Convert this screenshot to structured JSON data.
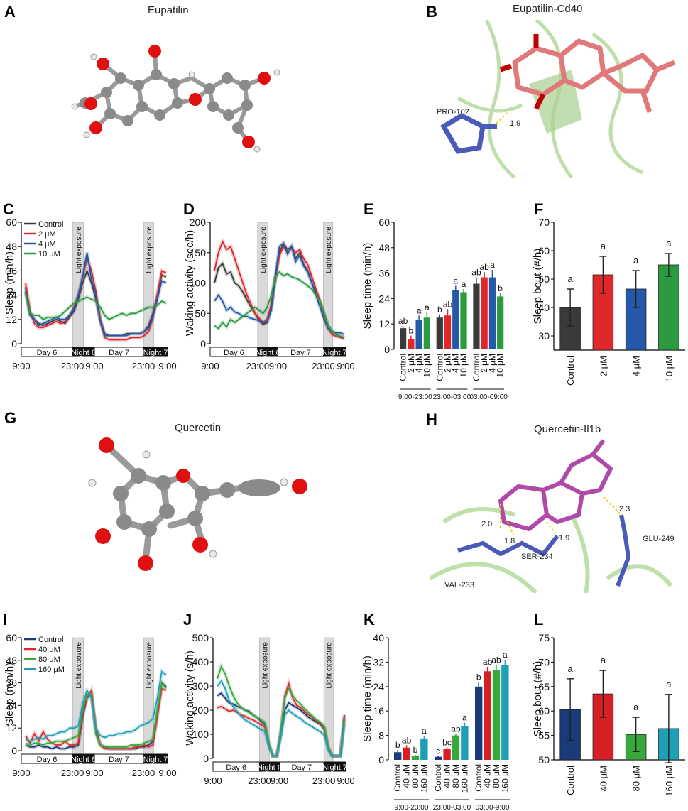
{
  "panels": {
    "A": {
      "letter": "A",
      "title": "Eupatilin"
    },
    "B": {
      "letter": "B",
      "title": "Eupatilin-Cd40",
      "labels": [
        "PRO-102",
        "1.9"
      ]
    },
    "G": {
      "letter": "G",
      "title": "Quercetin"
    },
    "H": {
      "letter": "H",
      "title": "Quercetin-Il1b",
      "labels": [
        "2.0",
        "1.8",
        "1.9",
        "2.3",
        "GLU-249",
        "SER-234",
        "VAL-233"
      ]
    }
  },
  "chart_data": [
    {
      "id": "C",
      "letter": "C",
      "type": "line",
      "ylabel": "Sleep (min/h)",
      "ylim": [
        0,
        60
      ],
      "yticks": [
        0,
        12,
        24,
        36,
        48,
        60
      ],
      "xticks": [
        "9:00",
        "23:00",
        "9:00",
        "23:00",
        "9:00"
      ],
      "day_bar": [
        "Day 6",
        "Night 6",
        "Day 7",
        "Night 7"
      ],
      "shade_label": "Light exposure",
      "series": [
        {
          "name": "Control",
          "color": "#3a3a3a",
          "values": [
            28,
            15,
            12,
            10,
            9,
            10,
            11,
            12,
            11,
            10,
            13,
            16,
            22,
            30,
            36,
            30,
            22,
            12,
            5,
            4,
            4,
            4,
            4,
            5,
            5,
            5,
            5,
            6,
            9,
            15,
            24,
            34,
            33
          ]
        },
        {
          "name": "2 μM",
          "color": "#e0282a",
          "values": [
            30,
            16,
            10,
            8,
            8,
            9,
            10,
            11,
            10,
            11,
            14,
            18,
            24,
            33,
            42,
            36,
            26,
            12,
            3,
            2,
            2,
            2,
            2,
            2,
            3,
            3,
            3,
            4,
            6,
            13,
            24,
            36,
            35
          ]
        },
        {
          "name": "4 μM",
          "color": "#2558a8",
          "values": [
            26,
            14,
            12,
            9,
            10,
            11,
            12,
            13,
            12,
            12,
            14,
            17,
            24,
            33,
            45,
            32,
            24,
            11,
            4,
            4,
            4,
            4,
            4,
            4,
            5,
            5,
            5,
            6,
            8,
            13,
            22,
            31,
            30
          ]
        },
        {
          "name": "10 μM",
          "color": "#2c9b3f",
          "values": [
            25,
            15,
            14,
            14,
            12,
            13,
            13,
            13,
            14,
            16,
            18,
            20,
            21,
            22,
            23,
            22,
            21,
            18,
            14,
            12,
            13,
            14,
            15,
            14,
            15,
            15,
            16,
            17,
            18,
            18,
            19,
            21,
            20
          ]
        }
      ]
    },
    {
      "id": "D",
      "letter": "D",
      "type": "line",
      "ylabel": "Waking activity (sec/h)",
      "ylim": [
        0,
        200
      ],
      "yticks": [
        0,
        50,
        100,
        150,
        200
      ],
      "xticks": [
        "9:00",
        "23:00",
        "9:00",
        "23:00",
        "9:00"
      ],
      "day_bar": [
        "Day 6",
        "Night 6",
        "Day 7",
        "Night 7"
      ],
      "shade_label": "Light exposure",
      "series": [
        {
          "name": "Control",
          "color": "#3a3a3a",
          "values": [
            100,
            125,
            132,
            115,
            118,
            100,
            95,
            85,
            72,
            60,
            50,
            38,
            32,
            35,
            60,
            105,
            150,
            165,
            155,
            160,
            140,
            150,
            130,
            120,
            100,
            85,
            70,
            50,
            30,
            20,
            15,
            12,
            10
          ]
        },
        {
          "name": "2 μM",
          "color": "#e0282a",
          "values": [
            120,
            150,
            168,
            155,
            160,
            140,
            120,
            100,
            80,
            65,
            50,
            42,
            35,
            40,
            65,
            110,
            145,
            160,
            150,
            158,
            150,
            155,
            140,
            130,
            110,
            90,
            70,
            45,
            25,
            15,
            12,
            10,
            8
          ]
        },
        {
          "name": "4 μM",
          "color": "#2558a8",
          "values": [
            70,
            80,
            70,
            55,
            60,
            52,
            50,
            45,
            45,
            42,
            40,
            38,
            35,
            36,
            55,
            110,
            160,
            165,
            148,
            160,
            135,
            145,
            128,
            118,
            100,
            80,
            60,
            40,
            25,
            20,
            18,
            18,
            15
          ]
        },
        {
          "name": "10 μM",
          "color": "#2c9b3f",
          "values": [
            30,
            25,
            35,
            28,
            40,
            35,
            40,
            45,
            50,
            55,
            60,
            55,
            50,
            60,
            80,
            110,
            118,
            112,
            115,
            110,
            108,
            105,
            100,
            95,
            90,
            80,
            70,
            50,
            30,
            20,
            15,
            12,
            10
          ]
        }
      ]
    },
    {
      "id": "E",
      "letter": "E",
      "type": "bar",
      "ylabel": "Sleep time (min/h)",
      "ylim": [
        0,
        60
      ],
      "yticks": [
        0,
        12,
        24,
        36,
        48,
        60
      ],
      "categories": [
        "Control",
        "2 μM",
        "4 μM",
        "10 μM"
      ],
      "groups": [
        "9:00-23:00",
        "23:00-03:00",
        "03:00-09:00"
      ],
      "colors": [
        "#3a3a3a",
        "#e0282a",
        "#2558a8",
        "#2c9b3f"
      ],
      "values": [
        [
          10,
          5,
          14,
          15
        ],
        [
          15,
          16,
          28,
          27
        ],
        [
          31,
          34,
          34,
          25
        ]
      ],
      "errors": [
        [
          1,
          1.5,
          2,
          2.5
        ],
        [
          1.5,
          3,
          2,
          1.5
        ],
        [
          3,
          2.5,
          3.5,
          1.5
        ]
      ],
      "letters": [
        [
          "ab",
          "b",
          "a",
          "a"
        ],
        [
          "b",
          "ab",
          "a",
          "a"
        ],
        [
          "ab",
          "ab",
          "a",
          "b"
        ]
      ]
    },
    {
      "id": "F",
      "letter": "F",
      "type": "bar",
      "ylabel": "Sleep bout (#/h)",
      "ylim": [
        25,
        70
      ],
      "yticks": [
        30,
        40,
        50,
        60,
        70
      ],
      "categories": [
        "Control",
        "2 μM",
        "4 μM",
        "10 μM"
      ],
      "colors": [
        "#3a3a3a",
        "#e0282a",
        "#2558a8",
        "#2c9b3f"
      ],
      "values": [
        40,
        51.5,
        46.5,
        55
      ],
      "errors": [
        6.5,
        6.5,
        6.5,
        4
      ],
      "letters": [
        "a",
        "a",
        "a",
        "a"
      ]
    },
    {
      "id": "I",
      "letter": "I",
      "type": "line",
      "ylabel": "Sleep (min/h)",
      "ylim": [
        0,
        60
      ],
      "yticks": [
        0,
        12,
        24,
        36,
        48,
        60
      ],
      "xticks": [
        "9:00",
        "23:00",
        "9:00",
        "23:00",
        "9:00"
      ],
      "day_bar": [
        "Day 6",
        "Night 6",
        "Day 7",
        "Night 7"
      ],
      "shade_label": "Light exposure",
      "series": [
        {
          "name": "Control",
          "color": "#1a3a7a",
          "values": [
            3,
            2,
            2,
            3,
            2,
            2,
            1,
            2,
            1,
            1,
            2,
            2,
            3,
            18,
            28,
            30,
            10,
            3,
            2,
            1,
            1,
            1,
            1,
            1,
            1,
            1,
            2,
            2,
            3,
            5,
            20,
            36,
            34
          ]
        },
        {
          "name": "40 μM",
          "color": "#e0282a",
          "values": [
            8,
            4,
            9,
            5,
            10,
            6,
            4,
            3,
            3,
            5,
            3,
            3,
            4,
            20,
            28,
            32,
            12,
            3,
            1,
            1,
            1,
            1,
            1,
            1,
            1,
            2,
            2,
            3,
            2,
            3,
            18,
            33,
            32
          ]
        },
        {
          "name": "80 μM",
          "color": "#38a83a",
          "values": [
            4,
            3,
            4,
            4,
            3,
            4,
            4,
            5,
            5,
            5,
            6,
            7,
            8,
            22,
            30,
            30,
            9,
            3,
            2,
            2,
            2,
            2,
            2,
            2,
            3,
            3,
            3,
            4,
            5,
            6,
            22,
            36,
            33
          ]
        },
        {
          "name": "160 μM",
          "color": "#1f9fb5",
          "values": [
            6,
            5,
            6,
            7,
            6,
            8,
            8,
            9,
            10,
            10,
            12,
            12,
            13,
            25,
            32,
            28,
            12,
            8,
            7,
            8,
            8,
            9,
            9,
            10,
            10,
            11,
            13,
            14,
            15,
            17,
            28,
            42,
            40
          ]
        }
      ]
    },
    {
      "id": "J",
      "letter": "J",
      "type": "line",
      "ylabel": "Waking activity (s/h)",
      "ylim": [
        0,
        500
      ],
      "yticks": [
        0,
        100,
        200,
        300,
        400,
        500
      ],
      "xticks": [
        "9:00",
        "23:00",
        "9:00",
        "23:00",
        "9:00"
      ],
      "day_bar": [
        "Day 6",
        "Night 6",
        "Day 7",
        "Night 7"
      ],
      "shade_label": "Light exposure",
      "series": [
        {
          "name": "Control",
          "color": "#1a3a7a",
          "values": [
            260,
            270,
            250,
            230,
            225,
            215,
            210,
            200,
            195,
            180,
            170,
            155,
            140,
            60,
            10,
            10,
            100,
            200,
            230,
            220,
            210,
            200,
            185,
            170,
            160,
            150,
            140,
            120,
            40,
            10,
            10,
            10,
            180
          ]
        },
        {
          "name": "40 μM",
          "color": "#e0282a",
          "values": [
            210,
            215,
            205,
            195,
            200,
            190,
            180,
            175,
            165,
            160,
            150,
            140,
            130,
            55,
            10,
            10,
            110,
            260,
            310,
            250,
            220,
            210,
            195,
            180,
            170,
            155,
            145,
            125,
            40,
            10,
            10,
            10,
            170
          ]
        },
        {
          "name": "80 μM",
          "color": "#38a83a",
          "values": [
            330,
            380,
            350,
            300,
            260,
            230,
            210,
            200,
            190,
            180,
            170,
            160,
            150,
            60,
            10,
            10,
            120,
            250,
            290,
            260,
            240,
            225,
            205,
            190,
            175,
            160,
            150,
            130,
            45,
            10,
            10,
            10,
            160
          ]
        },
        {
          "name": "160 μM",
          "color": "#1f9fb5",
          "values": [
            300,
            320,
            290,
            240,
            215,
            195,
            175,
            160,
            150,
            140,
            130,
            120,
            110,
            50,
            10,
            10,
            90,
            180,
            200,
            185,
            175,
            165,
            150,
            140,
            130,
            120,
            110,
            95,
            30,
            10,
            10,
            10,
            140
          ]
        }
      ]
    },
    {
      "id": "K",
      "letter": "K",
      "type": "bar",
      "ylabel": "Sleep time (min/h)",
      "ylim": [
        0,
        40
      ],
      "yticks": [
        0,
        8,
        16,
        24,
        32,
        40
      ],
      "categories": [
        "Control",
        "40 μM",
        "80 μM",
        "160 μM"
      ],
      "groups": [
        "9:00-23:00",
        "23:00-03:00",
        "03:00-9:00"
      ],
      "colors": [
        "#1a3a7a",
        "#d81f26",
        "#38a83a",
        "#1f9fb5"
      ],
      "values": [
        [
          2.5,
          4,
          1.2,
          7
        ],
        [
          1,
          3.5,
          8,
          11
        ],
        [
          24,
          29,
          29.5,
          31
        ]
      ],
      "errors": [
        [
          0.8,
          0.8,
          0.4,
          0.9
        ],
        [
          0.3,
          0.6,
          0.5,
          1.2
        ],
        [
          1.5,
          1.5,
          1.5,
          1.8
        ]
      ],
      "letters": [
        [
          "b",
          "ab",
          "b",
          "a"
        ],
        [
          "c",
          "bc",
          "ab",
          "a"
        ],
        [
          "b",
          "ab",
          "ab",
          "a"
        ]
      ]
    },
    {
      "id": "L",
      "letter": "L",
      "type": "bar",
      "ylabel": "Sleep bout (#/h)",
      "ylim": [
        50,
        75
      ],
      "yticks": [
        50,
        55,
        60,
        65,
        70,
        75
      ],
      "categories": [
        "Control",
        "40 μM",
        "80 μM",
        "160 μM"
      ],
      "colors": [
        "#1a3a7a",
        "#d81f26",
        "#38a83a",
        "#1f9fb5"
      ],
      "values": [
        60.3,
        63.5,
        55.2,
        56.4
      ],
      "errors": [
        6.3,
        4.8,
        3.5,
        7
      ],
      "letters": [
        "a",
        "a",
        "a",
        "a"
      ]
    }
  ]
}
